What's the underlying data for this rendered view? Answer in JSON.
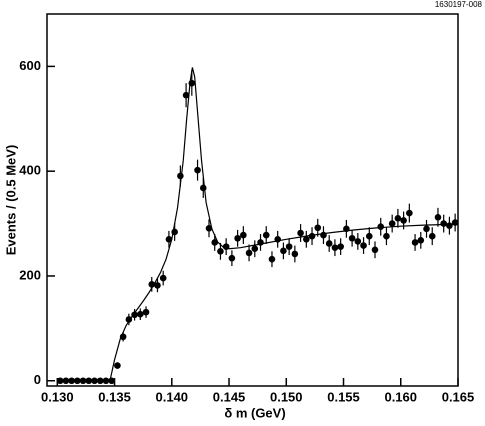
{
  "chart_data": {
    "type": "scatter",
    "note_label": "1630197-008",
    "xlabel": "δ m (GeV)",
    "ylabel": "Events / (0.5 MeV)",
    "xlim": [
      0.1291,
      0.165
    ],
    "ylim": [
      -10,
      700
    ],
    "xticks": [
      {
        "value": 0.13,
        "label": "0.130"
      },
      0.135,
      {
        "value": 0.14,
        "label": "0.140"
      },
      0.145,
      {
        "value": 0.15,
        "label": "0.150"
      },
      0.155,
      {
        "value": 0.16,
        "label": "0.160"
      },
      0.165
    ],
    "yticks": [
      0,
      200,
      400,
      600
    ],
    "color": "#000000",
    "x": [
      0.13025,
      0.13075,
      0.13125,
      0.13175,
      0.13225,
      0.13275,
      0.13325,
      0.13375,
      0.13425,
      0.13475,
      0.13525,
      0.13575,
      0.13625,
      0.13675,
      0.13725,
      0.13775,
      0.13825,
      0.13875,
      0.13925,
      0.13975,
      0.14025,
      0.14075,
      0.14125,
      0.14175,
      0.14225,
      0.14275,
      0.14325,
      0.14375,
      0.14425,
      0.14475,
      0.14525,
      0.14575,
      0.14625,
      0.14675,
      0.14725,
      0.14775,
      0.14825,
      0.14875,
      0.14925,
      0.14975,
      0.15025,
      0.15075,
      0.15125,
      0.15175,
      0.15225,
      0.15275,
      0.15325,
      0.15375,
      0.15425,
      0.15475,
      0.15525,
      0.15575,
      0.15625,
      0.15675,
      0.15725,
      0.15775,
      0.15825,
      0.15875,
      0.15925,
      0.15975,
      0.16025,
      0.16075,
      0.16125,
      0.16175,
      0.16225,
      0.16275,
      0.16325,
      0.16375,
      0.16425,
      0.16475
    ],
    "values": [
      0,
      0,
      0,
      0,
      0,
      0,
      0,
      0,
      0,
      0,
      29,
      84,
      117,
      126,
      127,
      131,
      184,
      182,
      196,
      270,
      284,
      391,
      545,
      568,
      402,
      368,
      291,
      264,
      247,
      256,
      234,
      272,
      278,
      244,
      252,
      264,
      278,
      232,
      270,
      248,
      256,
      242,
      282,
      270,
      276,
      292,
      278,
      262,
      254,
      256,
      290,
      272,
      266,
      258,
      276,
      250,
      294,
      276,
      300,
      310,
      306,
      320,
      264,
      268,
      290,
      276,
      312,
      300,
      296,
      302
    ],
    "errors": [
      0,
      0,
      0,
      0,
      0,
      0,
      0,
      0,
      0,
      0,
      6,
      9,
      11,
      11,
      11,
      11,
      14,
      13,
      14,
      16,
      17,
      20,
      23,
      24,
      20,
      19,
      17,
      16,
      16,
      16,
      15,
      16,
      17,
      16,
      16,
      16,
      17,
      15,
      16,
      16,
      16,
      16,
      17,
      16,
      17,
      17,
      17,
      16,
      16,
      16,
      17,
      16,
      16,
      16,
      17,
      16,
      17,
      17,
      17,
      18,
      17,
      18,
      16,
      16,
      17,
      17,
      18,
      17,
      17,
      17
    ],
    "fit": {
      "x": [
        0.1346,
        0.135,
        0.1355,
        0.136,
        0.1365,
        0.137,
        0.1375,
        0.138,
        0.1385,
        0.139,
        0.1395,
        0.14,
        0.1405,
        0.141,
        0.1413,
        0.1416,
        0.1418,
        0.142,
        0.1423,
        0.1426,
        0.143,
        0.1435,
        0.144,
        0.1445,
        0.145,
        0.146,
        0.148,
        0.15,
        0.152,
        0.154,
        0.156,
        0.158,
        0.16,
        0.162,
        0.165
      ],
      "y": [
        0,
        40,
        80,
        105,
        122,
        137,
        152,
        168,
        186,
        206,
        232,
        270,
        330,
        420,
        500,
        570,
        598,
        580,
        500,
        420,
        340,
        290,
        265,
        255,
        252,
        254,
        262,
        270,
        277,
        283,
        288,
        292,
        295,
        297,
        299
      ]
    }
  }
}
